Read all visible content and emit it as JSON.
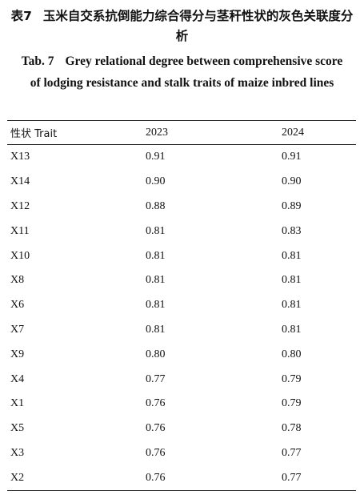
{
  "caption_cn": {
    "label": "表7",
    "text": "玉米自交系抗倒能力综合得分与茎秆性状的灰色关联度分析"
  },
  "caption_en": {
    "label": "Tab. 7",
    "text": "Grey relational degree between comprehensive score of lodging resistance and stalk traits of maize inbred lines"
  },
  "table": {
    "header": [
      "性状 Trait",
      "2023",
      "2024"
    ],
    "rows": [
      [
        "X13",
        "0.91",
        "0.91"
      ],
      [
        "X14",
        "0.90",
        "0.90"
      ],
      [
        "X12",
        "0.88",
        "0.89"
      ],
      [
        "X11",
        "0.81",
        "0.83"
      ],
      [
        "X10",
        "0.81",
        "0.81"
      ],
      [
        "X8",
        "0.81",
        "0.81"
      ],
      [
        "X6",
        "0.81",
        "0.81"
      ],
      [
        "X7",
        "0.81",
        "0.81"
      ],
      [
        "X9",
        "0.80",
        "0.80"
      ],
      [
        "X4",
        "0.77",
        "0.79"
      ],
      [
        "X1",
        "0.76",
        "0.79"
      ],
      [
        "X5",
        "0.76",
        "0.78"
      ],
      [
        "X3",
        "0.76",
        "0.77"
      ],
      [
        "X2",
        "0.76",
        "0.77"
      ]
    ]
  }
}
